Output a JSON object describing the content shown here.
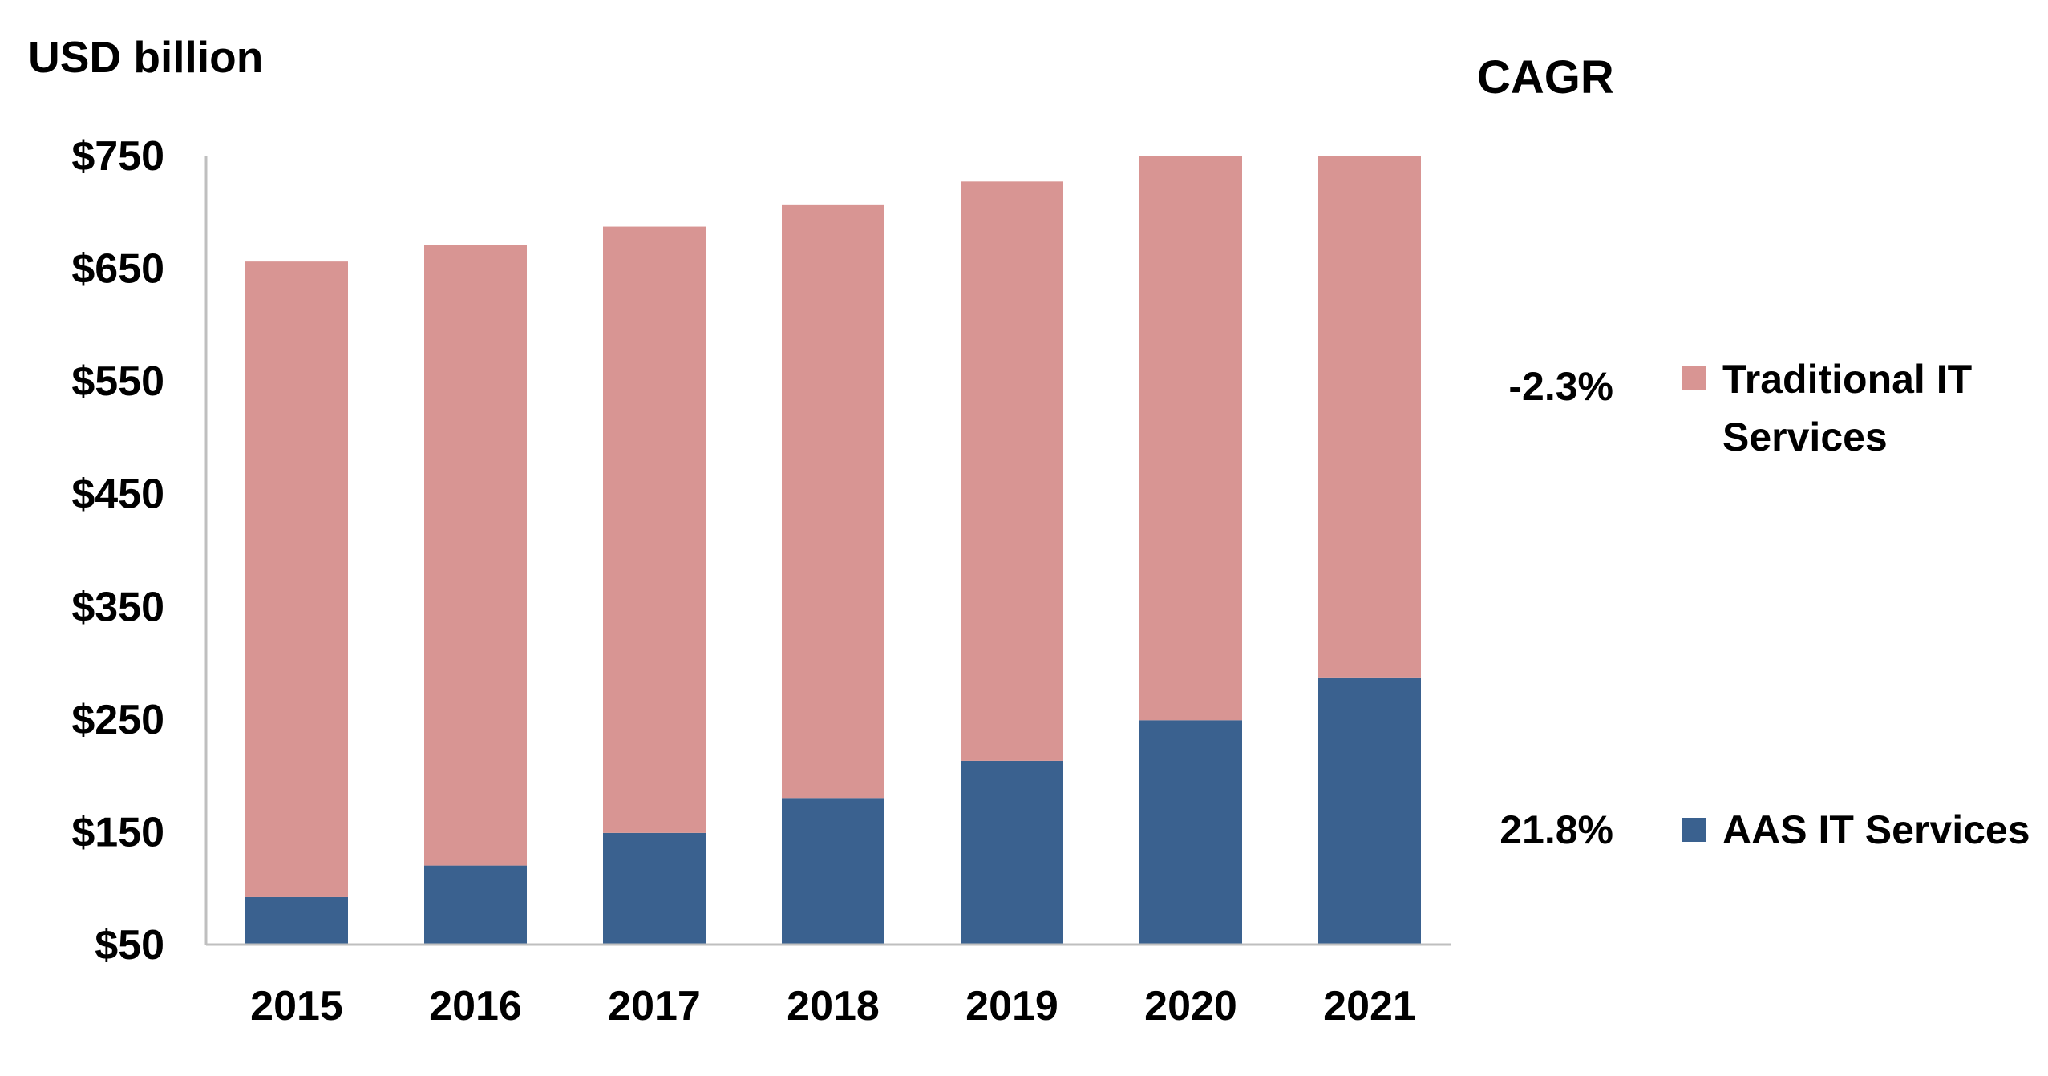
{
  "chart_data": {
    "type": "bar",
    "stacked": true,
    "ylabel": "USD billion",
    "categories": [
      "2015",
      "2016",
      "2017",
      "2018",
      "2019",
      "2020",
      "2021"
    ],
    "ylim": [
      50,
      750
    ],
    "yticks": [
      "$750",
      "$650",
      "$550",
      "$450",
      "$350",
      "$250",
      "$150",
      "$50"
    ],
    "ytick_values": [
      750,
      650,
      550,
      450,
      350,
      250,
      150,
      50
    ],
    "grid": false,
    "legend_position": "right",
    "series": [
      {
        "name": "AAS IT Services",
        "color": "#3A618F",
        "values": [
          92,
          120,
          149,
          180,
          213,
          249,
          287
        ],
        "cagr": "21.8%"
      },
      {
        "name": "Traditional IT Services",
        "color": "#D89593",
        "values": [
          564,
          551,
          538,
          526,
          514,
          501,
          463
        ],
        "cagr": "-2.3%"
      }
    ],
    "cagr_title": "CAGR"
  }
}
